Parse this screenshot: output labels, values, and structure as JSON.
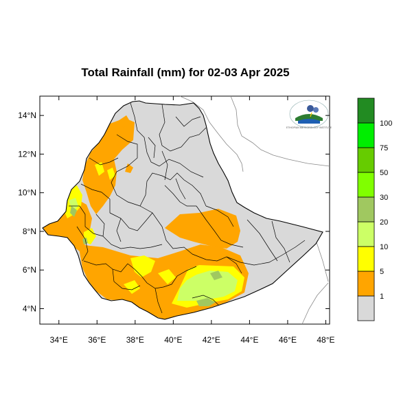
{
  "map": {
    "title": "Total Rainfall (mm) for 02-03 Apr 2025",
    "lat_ticks": [
      "4°N",
      "6°N",
      "8°N",
      "10°N",
      "12°N",
      "14°N"
    ],
    "lon_ticks": [
      "34°E",
      "36°E",
      "38°E",
      "40°E",
      "42°E",
      "44°E",
      "46°E",
      "48°E"
    ],
    "lat_range": [
      3.2,
      15.0
    ],
    "lon_range": [
      33.0,
      48.2
    ],
    "land_color": "#d9d9d9",
    "border_color": "#000000",
    "neighbor_border_color": "#888888",
    "logo": {
      "name": "ethiopia-meteorology-logo",
      "text": "ኢትዮጵያ ሜቴዎሮሎጂ ኢንስቲትዩት"
    }
  },
  "legend": {
    "labels": [
      "1",
      "5",
      "10",
      "20",
      "30",
      "50",
      "75",
      "100"
    ],
    "colors": [
      "#d9d9d9",
      "#ffa500",
      "#ffff00",
      "#ccff66",
      "#a0c860",
      "#80ff00",
      "#66cc00",
      "#00ee00",
      "#228b22"
    ]
  }
}
